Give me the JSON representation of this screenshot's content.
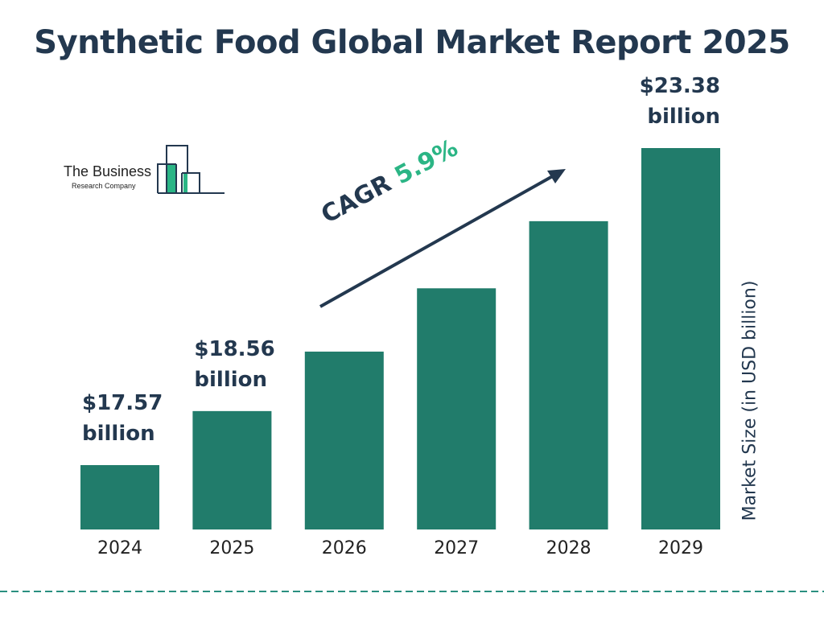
{
  "title": "Synthetic Food Global Market Report 2025",
  "logo": {
    "line1": "The Business",
    "line2": "Research Company"
  },
  "chart_data": {
    "type": "bar",
    "categories": [
      "2024",
      "2025",
      "2026",
      "2027",
      "2028",
      "2029"
    ],
    "values": [
      17.57,
      18.56,
      19.65,
      20.81,
      22.04,
      23.38
    ],
    "data_labels": {
      "2024": [
        "$17.57",
        "billion"
      ],
      "2025": [
        "$18.56",
        "billion"
      ],
      "2029": [
        "$23.38",
        "billion"
      ]
    },
    "ylabel": "Market Size (in USD billion)",
    "xlabel": "",
    "annotation": {
      "prefix": "CAGR",
      "value": "5.9%"
    },
    "grid": false,
    "bar_color": "#217c6b",
    "accent_color": "#2bb585",
    "text_color": "#23384f"
  }
}
